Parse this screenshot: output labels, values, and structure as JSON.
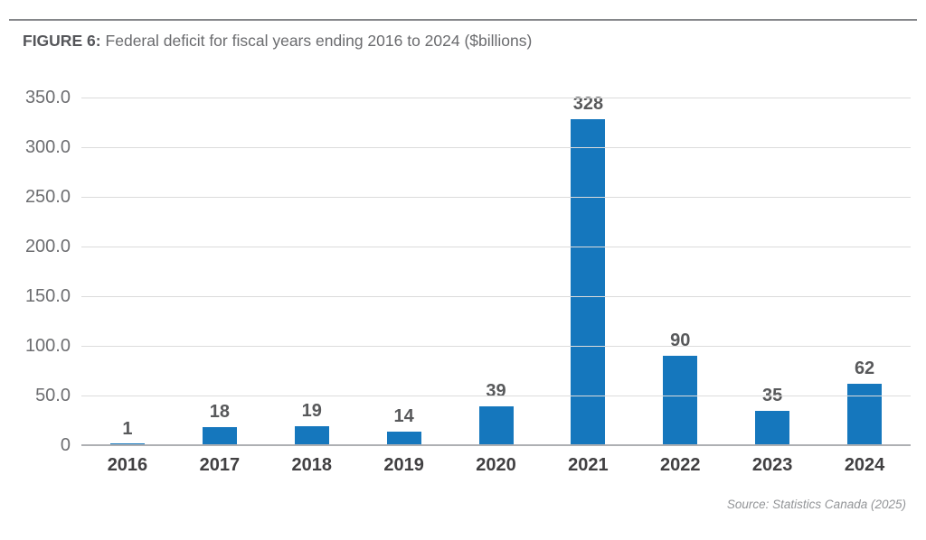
{
  "figure": {
    "label": "FIGURE 6:",
    "title": "Federal deficit for fiscal years ending 2016 to 2024 ($billions)",
    "source": "Source: Statistics Canada (2025)"
  },
  "colors": {
    "bar": "#1577bd",
    "gridline": "#dcdcdc",
    "baseline": "#aeb0b3",
    "ytick_text": "#6d6e71",
    "xtick_text": "#414042",
    "value_label_text": "#58595b",
    "title_label_text": "#55565a",
    "title_text": "#6a6b6e",
    "top_rule": "#85878a",
    "source_text": "#929497"
  },
  "chart_data": {
    "type": "bar",
    "title": "FIGURE 6: Federal deficit for fiscal years ending 2016 to 2024 ($billions)",
    "categories": [
      "2016",
      "2017",
      "2018",
      "2019",
      "2020",
      "2021",
      "2022",
      "2023",
      "2024"
    ],
    "values": [
      1,
      18,
      19,
      14,
      39,
      328,
      90,
      35,
      62
    ],
    "xlabel": "",
    "ylabel": "",
    "ylim": [
      0,
      350
    ],
    "ytick_values": [
      0,
      50,
      100,
      150,
      200,
      250,
      300,
      350
    ],
    "ytick_labels": [
      "0",
      "50.0",
      "100.0",
      "150.0",
      "200.0",
      "250.0",
      "300.0",
      "350.0"
    ],
    "grid": "horizontal",
    "legend": "none",
    "data_labels": true,
    "annotation": "Source: Statistics Canada (2025)"
  }
}
